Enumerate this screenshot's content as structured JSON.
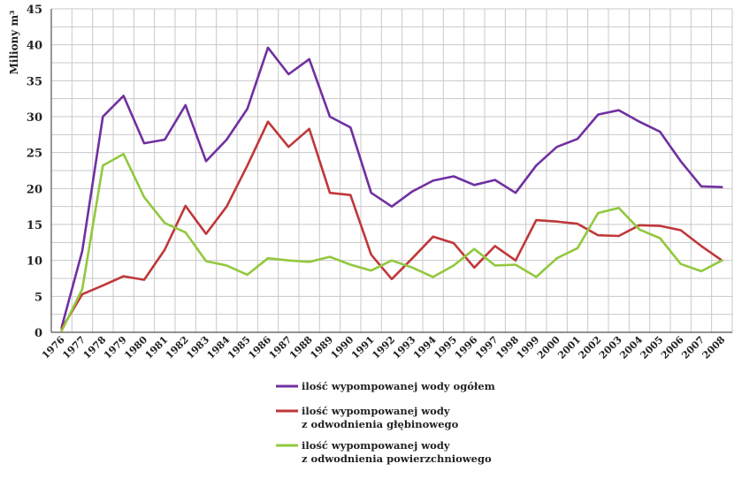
{
  "chart_data": {
    "type": "line",
    "ylabel": "Miliony m³",
    "ylim": [
      0,
      45
    ],
    "yticks": [
      "0",
      "5",
      "10",
      "15",
      "20",
      "25",
      "30",
      "35",
      "40",
      "45"
    ],
    "x": [
      "1976",
      "1977",
      "1978",
      "1979",
      "1980",
      "1981",
      "1982",
      "1983",
      "1984",
      "1985",
      "1986",
      "1987",
      "1988",
      "1989",
      "1990",
      "1991",
      "1992",
      "1993",
      "1994",
      "1995",
      "1996",
      "1997",
      "1998",
      "1999",
      "2000",
      "2001",
      "2002",
      "2003",
      "2004",
      "2005",
      "2006",
      "2007",
      "2008"
    ],
    "grid": true,
    "legend_position": "bottom",
    "series": [
      {
        "name_lines": [
          "ilość wypompowanej wody ogółem"
        ],
        "color": "#7030a0",
        "values": [
          0.7,
          11.3,
          30.0,
          32.9,
          26.3,
          26.8,
          31.6,
          23.8,
          26.8,
          31.1,
          39.6,
          35.9,
          38.0,
          30.0,
          28.5,
          19.4,
          17.5,
          19.6,
          21.1,
          21.7,
          20.5,
          21.2,
          19.4,
          23.2,
          25.8,
          26.9,
          30.3,
          30.9,
          29.3,
          27.9,
          23.8,
          20.3,
          20.2
        ]
      },
      {
        "name_lines": [
          "ilość wypompowanej wody",
          "z odwodnienia głębinowego"
        ],
        "color": "#c0373a",
        "values": [
          0.5,
          5.3,
          6.5,
          7.8,
          7.3,
          11.5,
          17.6,
          13.7,
          17.5,
          23.2,
          29.3,
          25.8,
          28.3,
          19.4,
          19.1,
          10.8,
          7.4,
          10.3,
          13.3,
          12.4,
          9.0,
          12.0,
          10.0,
          15.6,
          15.4,
          15.1,
          13.5,
          13.4,
          14.9,
          14.8,
          14.2,
          12.0,
          10.0
        ]
      },
      {
        "name_lines": [
          "ilość wypompowanej wody",
          "z odwodnienia powierzchniowego"
        ],
        "color": "#92c83e",
        "values": [
          0.2,
          6.0,
          23.2,
          24.8,
          18.8,
          15.2,
          13.9,
          9.9,
          9.3,
          8.0,
          10.3,
          10.0,
          9.8,
          10.5,
          9.4,
          8.6,
          10.0,
          9.0,
          7.7,
          9.3,
          11.6,
          9.3,
          9.4,
          7.7,
          10.3,
          11.7,
          16.6,
          17.3,
          14.3,
          13.1,
          9.5,
          8.5,
          10.0
        ]
      }
    ]
  }
}
